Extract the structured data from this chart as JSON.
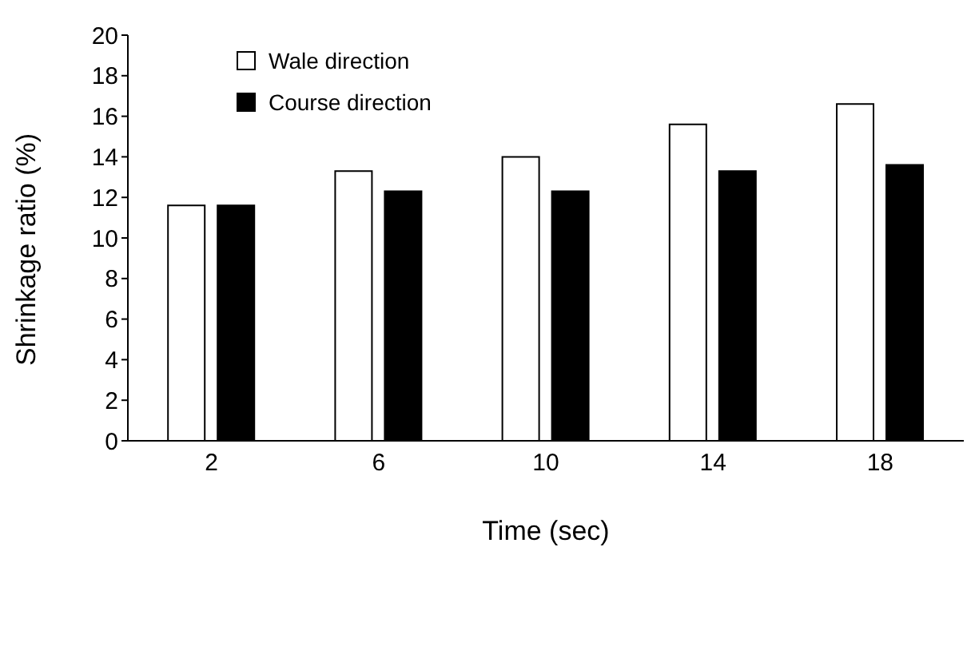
{
  "chart_data": {
    "type": "bar",
    "xlabel": "Time (sec)",
    "ylabel": "Shrinkage ratio (%)",
    "categories": [
      "2",
      "6",
      "10",
      "14",
      "18"
    ],
    "series": [
      {
        "name": "Wale direction",
        "color": "#ffffff",
        "values": [
          11.6,
          13.3,
          14.0,
          15.6,
          16.6
        ]
      },
      {
        "name": "Course direction",
        "color": "#000000",
        "values": [
          11.6,
          12.3,
          12.3,
          13.3,
          13.6
        ]
      }
    ],
    "ylim": [
      0,
      20
    ],
    "yticks": [
      0,
      2,
      4,
      6,
      8,
      10,
      12,
      14,
      16,
      18,
      20
    ],
    "grid": false,
    "legend": "top left"
  }
}
